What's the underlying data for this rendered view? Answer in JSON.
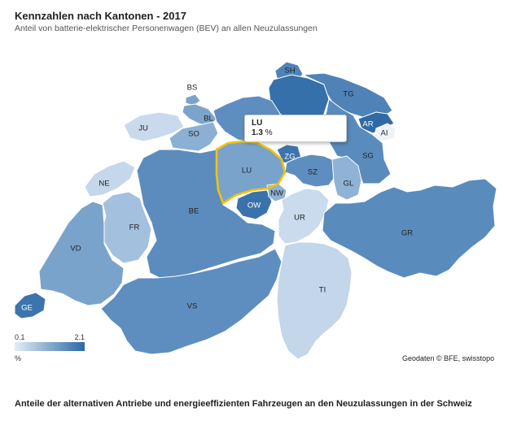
{
  "header": {
    "title": "Kennzahlen nach Kantonen - 2017",
    "subtitle": "Anteil von batterie-elektrischer Personenwagen (BEV) an allen Neuzulassungen"
  },
  "tooltip": {
    "canton": "LU",
    "value": "1.3",
    "unit": "%"
  },
  "legend": {
    "min": "0.1",
    "max": "2.1",
    "unit": "%",
    "color_low": "#e3ecf6",
    "color_high": "#2b6aa5"
  },
  "highlight_color": "#f5c400",
  "attribution": "Geodaten © BFE, swisstopo",
  "footer": "Anteile der alternativen Antriebe und energieeffizienten Fahrzeugen an den Neuzulassungen in der Schweiz",
  "cantons": [
    {
      "code": "SH",
      "label": "SH",
      "color": "#4f83b8"
    },
    {
      "code": "BS",
      "label": "BS",
      "color": "#7ba3cc"
    },
    {
      "code": "ZH",
      "label": "",
      "color": "#3570aa"
    },
    {
      "code": "TG",
      "label": "TG",
      "color": "#4f83b8"
    },
    {
      "code": "AR",
      "label": "AR",
      "color": "#2f6aa6"
    },
    {
      "code": "AI",
      "label": "AI",
      "color": "#eef3f9"
    },
    {
      "code": "BL",
      "label": "BL",
      "color": "#7ba3cc"
    },
    {
      "code": "JU",
      "label": "JU",
      "color": "#c8daec"
    },
    {
      "code": "SO",
      "label": "SO",
      "color": "#8bb0d4"
    },
    {
      "code": "AG",
      "label": "",
      "color": "#5e8ebf"
    },
    {
      "code": "LU",
      "label": "LU",
      "color": "#7aa3cc"
    },
    {
      "code": "ZG",
      "label": "ZG",
      "color": "#3d74ad"
    },
    {
      "code": "SG",
      "label": "SG",
      "color": "#5a8bbd"
    },
    {
      "code": "SZ",
      "label": "SZ",
      "color": "#5e8ebf"
    },
    {
      "code": "GL",
      "label": "GL",
      "color": "#8fb3d6"
    },
    {
      "code": "NE",
      "label": "NE",
      "color": "#c5d7ea"
    },
    {
      "code": "BE",
      "label": "BE",
      "color": "#5c8cbe"
    },
    {
      "code": "OW",
      "label": "OW",
      "color": "#3a72ac"
    },
    {
      "code": "NW",
      "label": "NW",
      "color": "#8fb3d6"
    },
    {
      "code": "UR",
      "label": "UR",
      "color": "#c9dbed"
    },
    {
      "code": "GR",
      "label": "GR",
      "color": "#5a8bbd"
    },
    {
      "code": "FR",
      "label": "FR",
      "color": "#a3c0de"
    },
    {
      "code": "VD",
      "label": "VD",
      "color": "#7aa3cc"
    },
    {
      "code": "GE",
      "label": "GE",
      "color": "#3d74ad"
    },
    {
      "code": "VS",
      "label": "VS",
      "color": "#5e8ebf"
    },
    {
      "code": "TI",
      "label": "TI",
      "color": "#c3d6ea"
    }
  ]
}
